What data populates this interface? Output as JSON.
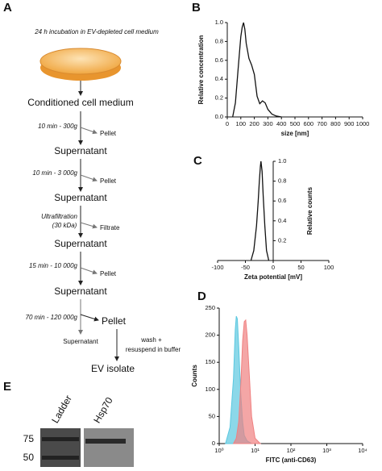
{
  "protocol": {
    "label": "A",
    "incubation": "24 h incubation in EV-depleted cell medium",
    "stages": [
      "Conditioned cell medium",
      "Supernatant",
      "Supernatant",
      "Supernatant",
      "Supernatant",
      "Pellet",
      "EV isolate"
    ],
    "conditions": [
      "10 min - 300g",
      "10 min - 3 000g",
      "Ultrafiltration",
      "(30 kDa)",
      "15 min - 10 000g",
      "70 min - 120 000g"
    ],
    "byproducts": [
      "Pellet",
      "Pellet",
      "Filtrate",
      "Pellet",
      "Supernatant"
    ],
    "wash": [
      "wash +",
      "resuspend in buffer"
    ]
  },
  "chart_data": [
    {
      "panel": "B",
      "type": "line",
      "xlabel": "size [nm]",
      "ylabel": "Relative concentration",
      "x": [
        40,
        60,
        80,
        100,
        110,
        120,
        130,
        140,
        160,
        180,
        200,
        220,
        240,
        260,
        280,
        300,
        330,
        360,
        400
      ],
      "values": [
        0,
        0.15,
        0.5,
        0.85,
        0.95,
        1.0,
        0.93,
        0.78,
        0.62,
        0.55,
        0.45,
        0.22,
        0.14,
        0.17,
        0.15,
        0.08,
        0.03,
        0.01,
        0
      ],
      "color": "#111111",
      "xlim": [
        0,
        1000
      ],
      "xticks": [
        0,
        100,
        200,
        300,
        400,
        500,
        600,
        700,
        800,
        900,
        1000
      ],
      "ylim": [
        0,
        1
      ],
      "yticks": [
        {
          "value": 0,
          "label": "0.0"
        },
        0.2,
        0.4,
        0.6,
        0.8,
        {
          "value": 1,
          "label": "1.0"
        }
      ]
    },
    {
      "panel": "C",
      "type": "line",
      "xlabel": "Zeta potential [mV]",
      "ylabel": "Relative counts",
      "x": [
        -40,
        -35,
        -30,
        -27,
        -25,
        -23,
        -22,
        -20,
        -18,
        -15,
        -12,
        -8
      ],
      "values": [
        0,
        0.1,
        0.35,
        0.6,
        0.8,
        0.95,
        1.0,
        0.9,
        0.65,
        0.35,
        0.1,
        0
      ],
      "color": "#111111",
      "xlim": [
        -100,
        100
      ],
      "xticks": [
        -100,
        -50,
        0,
        50,
        100
      ],
      "ylim": [
        0,
        1
      ],
      "yticks": [
        0.2,
        0.4,
        0.6,
        0.8,
        {
          "value": 1,
          "label": "1.0"
        }
      ]
    },
    {
      "panel": "D",
      "type": "area",
      "xlabel": "FITC (anti-CD63)",
      "ylabel": "Counts",
      "xscale": "log",
      "series": [
        {
          "color": "#5bc8e0",
          "x": [
            1.5,
            2,
            2.5,
            2.8,
            3,
            3.2,
            3.5,
            4,
            4.5,
            5,
            6,
            8
          ],
          "values": [
            0,
            30,
            120,
            210,
            235,
            230,
            180,
            90,
            40,
            15,
            5,
            0
          ]
        },
        {
          "color": "#f08080",
          "x": [
            2.5,
            3,
            3.5,
            4,
            4.5,
            5,
            5.5,
            6,
            7,
            8,
            10,
            14
          ],
          "values": [
            0,
            10,
            40,
            110,
            190,
            225,
            228,
            200,
            120,
            50,
            10,
            0
          ]
        }
      ],
      "xlim": [
        1,
        10000
      ],
      "xticks": [
        {
          "value": 1,
          "label": "10⁰"
        },
        {
          "value": 10,
          "label": "10¹"
        },
        {
          "value": 100,
          "label": "10²"
        },
        {
          "value": 1000,
          "label": "10³"
        },
        {
          "value": 10000,
          "label": "10⁴"
        }
      ],
      "ylim": [
        0,
        250
      ],
      "yticks": [
        0,
        50,
        100,
        150,
        200,
        250
      ]
    }
  ],
  "blot": {
    "label": "E",
    "lanes": [
      "Ladder",
      "Hsp70"
    ],
    "markers": [
      75,
      50
    ]
  }
}
